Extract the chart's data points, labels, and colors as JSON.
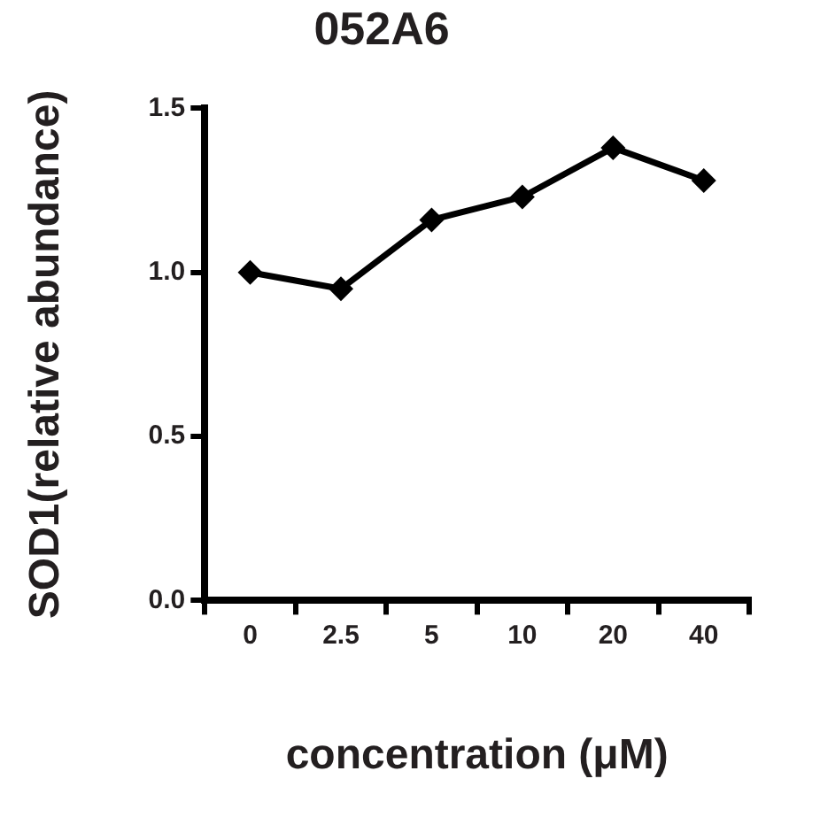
{
  "chart_data": {
    "type": "line",
    "title": "052A6",
    "xlabel": "concentration (μM)",
    "ylabel": "SOD1(relative abundance)",
    "categories": [
      "0",
      "2.5",
      "5",
      "10",
      "20",
      "40"
    ],
    "series": [
      {
        "color": "#000000",
        "values": [
          1.0,
          0.95,
          1.16,
          1.23,
          1.38,
          1.28
        ]
      }
    ],
    "ylim": [
      0,
      1.5
    ],
    "yticks": [
      {
        "value": 0,
        "label": "0.0"
      },
      {
        "value": 0.5,
        "label": "0.5"
      },
      {
        "value": 1,
        "label": "1.0"
      },
      {
        "value": 1.5,
        "label": "1.5"
      }
    ],
    "grid": false,
    "legend": false,
    "marker": "diamond",
    "line_style": "solid"
  }
}
